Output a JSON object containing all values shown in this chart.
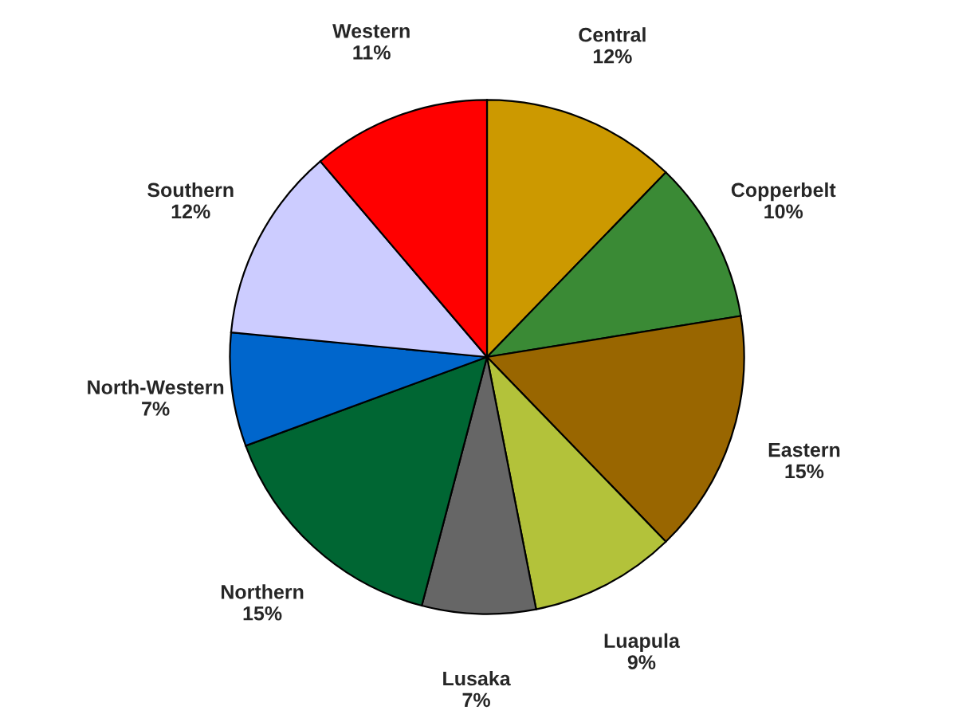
{
  "chart_data": {
    "type": "pie",
    "categories": [
      "Central",
      "Copperbelt",
      "Eastern",
      "Luapula",
      "Lusaka",
      "Northern",
      "North-Western",
      "Southern",
      "Western"
    ],
    "values": [
      12,
      10,
      15,
      9,
      7,
      15,
      7,
      12,
      11
    ],
    "value_labels": [
      "12%",
      "10%",
      "15%",
      "9%",
      "7%",
      "15%",
      "7%",
      "12%",
      "11%"
    ],
    "colors": [
      "#cc9900",
      "#3a8a35",
      "#996600",
      "#b3c23a",
      "#666666",
      "#006633",
      "#0066cc",
      "#ccccff",
      "#ff0000"
    ],
    "legend": false
  }
}
